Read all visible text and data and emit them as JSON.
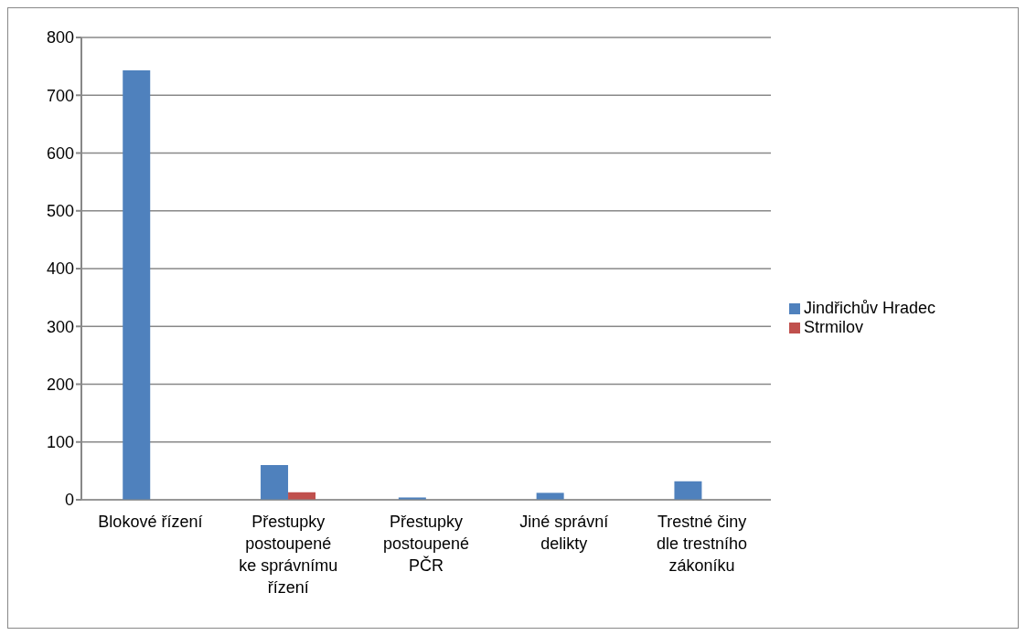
{
  "chart_data": {
    "type": "bar",
    "categories": [
      "Blokové řízení",
      "Přestupky postoupené ke správnímu řízení",
      "Přestupky postoupené PČR",
      "Jiné správní delikty",
      "Trestné činy dle trestního zákoníku"
    ],
    "series": [
      {
        "name": "Jindřichův Hradec",
        "color": "#4f81bd",
        "values": [
          743,
          60,
          4,
          12,
          32
        ]
      },
      {
        "name": "Strmilov",
        "color": "#c0504d",
        "values": [
          0,
          13,
          0,
          0,
          0
        ]
      }
    ],
    "ylim": [
      0,
      800
    ],
    "yticks": [
      0,
      100,
      200,
      300,
      400,
      500,
      600,
      700,
      800
    ],
    "grid": "y",
    "legend": "right"
  }
}
